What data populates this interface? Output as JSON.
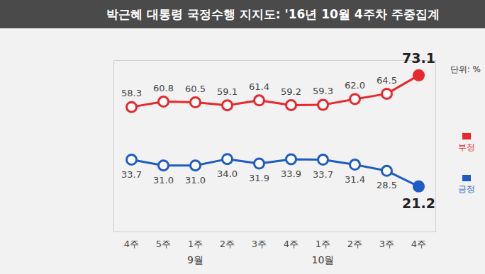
{
  "chart_data": {
    "type": "line",
    "title": "박근혜 대통령 국정수행 지지도: '16년 10월 4주차 주중집계",
    "ylabel": "단위: %",
    "categories": [
      "4주",
      "5주",
      "1주",
      "2주",
      "3주",
      "4주",
      "1주",
      "2주",
      "3주",
      "4주"
    ],
    "month_labels": [
      null,
      null,
      "9월",
      null,
      null,
      null,
      "10월",
      null,
      null,
      null
    ],
    "series": [
      {
        "name": "부정",
        "color": "#e8282b",
        "marker": "circle",
        "line_style": "solid",
        "values": [
          58.3,
          60.8,
          60.5,
          59.1,
          61.4,
          59.2,
          59.3,
          62.0,
          64.5,
          73.1
        ],
        "value_labels": [
          "58.3",
          "60.8",
          "60.5",
          "59.1",
          "61.4",
          "59.2",
          "59.3",
          "62.0",
          "64.5",
          "73.1"
        ]
      },
      {
        "name": "긍정",
        "color": "#1e5bc6",
        "marker": "circle",
        "line_style": "solid",
        "values": [
          33.7,
          31.0,
          31.0,
          34.0,
          31.9,
          33.9,
          33.7,
          31.4,
          28.5,
          21.2
        ],
        "value_labels": [
          "33.7",
          "31.0",
          "31.0",
          "34.0",
          "31.9",
          "33.9",
          "33.7",
          "31.4",
          "28.5",
          "21.2"
        ]
      }
    ],
    "ylim": [
      0,
      80
    ],
    "yticks": [],
    "grid": false,
    "legend": "right",
    "data_labels": true,
    "tick_labels": "x"
  }
}
